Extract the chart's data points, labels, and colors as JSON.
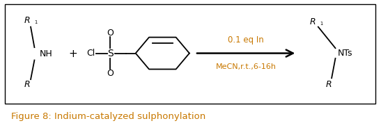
{
  "title": "Figure 8: Indium-catalyzed sulphonylation",
  "title_color": "#c87800",
  "title_fontsize": 9.5,
  "text_color": "#000000",
  "orange_color": "#c87800",
  "bg_color": "#ffffff",
  "fig_width": 5.47,
  "fig_height": 1.84,
  "dpi": 100,
  "condition_line1": "0.1 eq In",
  "condition_line2": "MeCN,r.t.,6-16h"
}
